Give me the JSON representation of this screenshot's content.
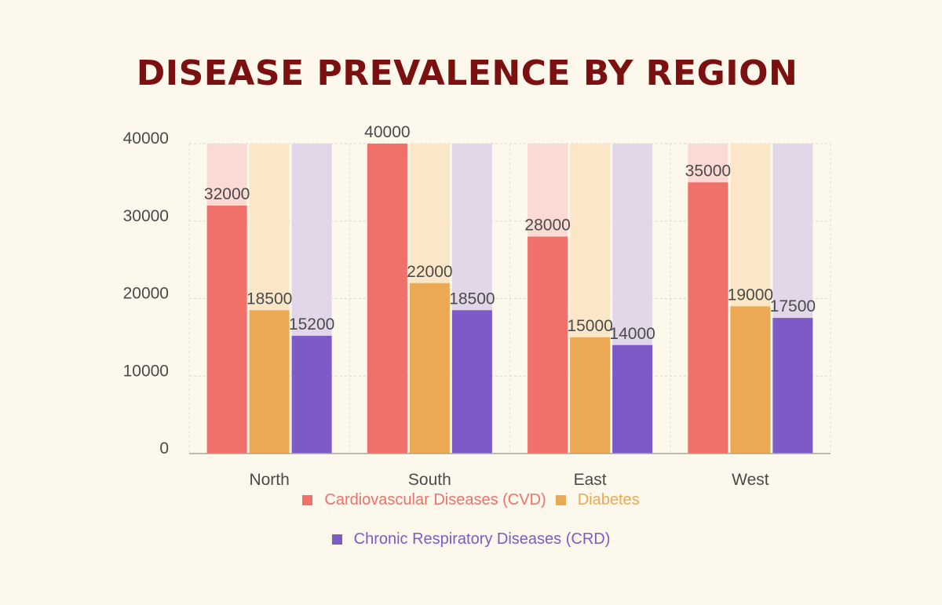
{
  "chart_data": {
    "type": "bar",
    "title": "DISEASE PREVALENCE BY REGION",
    "categories": [
      "North",
      "South",
      "East",
      "West"
    ],
    "series": [
      {
        "name": "Cardiovascular Diseases (CVD)",
        "values": [
          32000,
          40000,
          28000,
          35000
        ],
        "color": "#f0706a",
        "bg_color": "#fbdad3"
      },
      {
        "name": "Diabetes",
        "values": [
          18500,
          22000,
          15000,
          19000
        ],
        "color": "#eaa952",
        "bg_color": "#fbe7c8"
      },
      {
        "name": "Chronic Respiratory Diseases (CRD)",
        "values": [
          15200,
          18500,
          14000,
          17500
        ],
        "color": "#7d5ac5",
        "bg_color": "#e2d7e9"
      }
    ],
    "y_ticks": [
      0,
      10000,
      20000,
      30000,
      40000
    ],
    "ylim": [
      0,
      40000
    ],
    "grid": true,
    "legend_position": "bottom"
  }
}
